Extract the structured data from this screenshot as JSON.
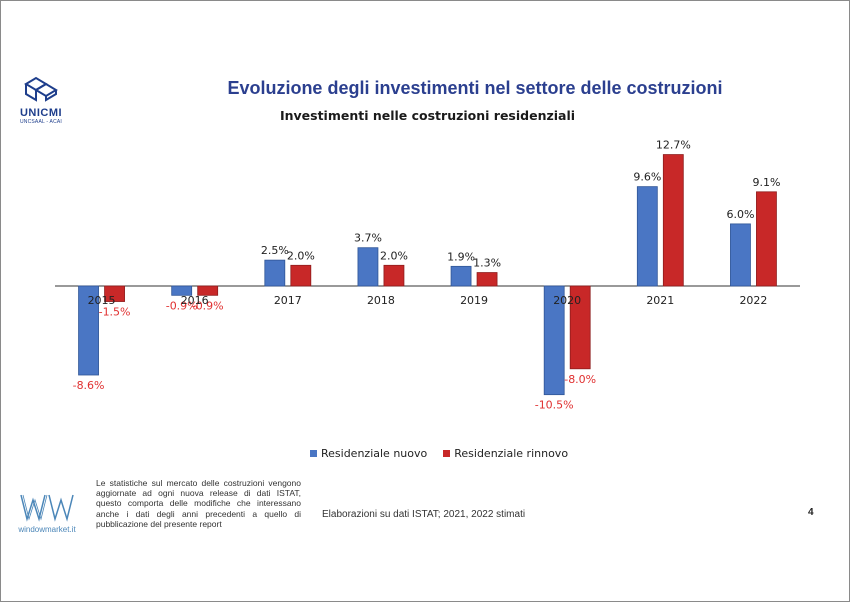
{
  "logo": {
    "name": "UNICMI",
    "subtitle": "UNCSAAL - ACAI"
  },
  "header": {
    "title": "Evoluzione degli investimenti nel settore delle costruzioni"
  },
  "chart_data": {
    "type": "bar",
    "title": "Investimenti nelle costruzioni residenziali",
    "categories": [
      "2015",
      "2016",
      "2017",
      "2018",
      "2019",
      "2020",
      "2021",
      "2022"
    ],
    "series": [
      {
        "name": "Residenziale nuovo",
        "color": "#4a76c4",
        "values": [
          -8.6,
          -0.9,
          2.5,
          3.7,
          1.9,
          -10.5,
          9.6,
          6.0
        ],
        "labels": [
          "-8.6%",
          "-0.9%",
          "2.5%",
          "3.7%",
          "1.9%",
          "-10.5%",
          "9.6%",
          "6.0%"
        ]
      },
      {
        "name": "Residenziale rinnovo",
        "color": "#c82828",
        "values": [
          -1.5,
          -0.9,
          2.0,
          2.0,
          1.3,
          -8.0,
          12.7,
          9.1
        ],
        "labels": [
          "-1.5%",
          "-0.9%",
          "2.0%",
          "2.0%",
          "1.3%",
          "-8.0%",
          "12.7%",
          "9.1%"
        ]
      }
    ],
    "negative_label_color": "#e03030",
    "grid": false,
    "legend_position": "bottom"
  },
  "footer": {
    "note": "Le statistiche sul mercato delle costruzioni vengono aggiornate ad ogni nuova release di dati ISTAT, questo comporta delle modifiche che interessano anche i dati degli anni precedenti a quello di pubblicazione del presente report",
    "watermark_url": "windowmarket.it",
    "source": "Elaborazioni su dati ISTAT; 2021, 2022 stimati",
    "page_number": "4"
  }
}
